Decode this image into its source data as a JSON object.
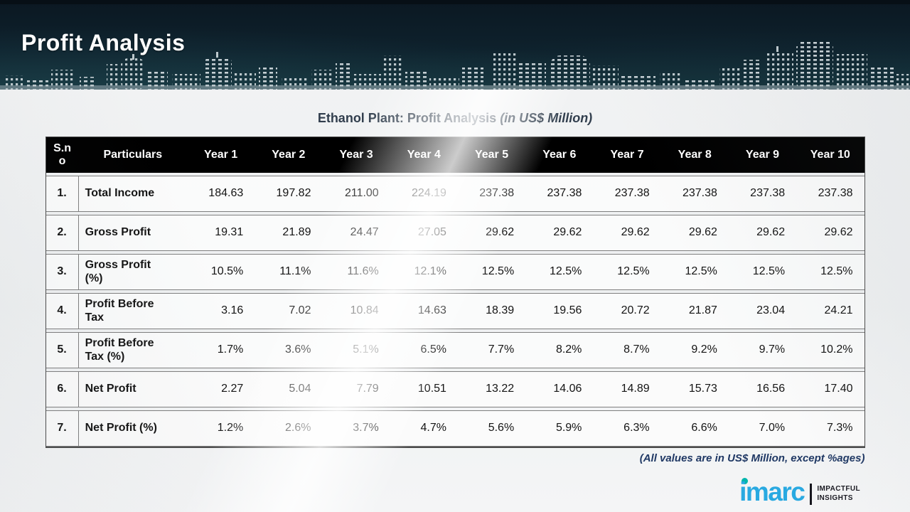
{
  "header": {
    "title": "Profit Analysis"
  },
  "table": {
    "title": "Ethanol Plant: Profit Analysis",
    "title_note": "(in US$ Million)",
    "columns": [
      "S.no",
      "Particulars",
      "Year 1",
      "Year 2",
      "Year 3",
      "Year 4",
      "Year 5",
      "Year 6",
      "Year 7",
      "Year 8",
      "Year 9",
      "Year 10"
    ],
    "rows": [
      {
        "sno": "1.",
        "particulars": "Total Income",
        "values": [
          "184.63",
          "197.82",
          "211.00",
          "224.19",
          "237.38",
          "237.38",
          "237.38",
          "237.38",
          "237.38",
          "237.38"
        ]
      },
      {
        "sno": "2.",
        "particulars": "Gross Profit",
        "values": [
          "19.31",
          "21.89",
          "24.47",
          "27.05",
          "29.62",
          "29.62",
          "29.62",
          "29.62",
          "29.62",
          "29.62"
        ]
      },
      {
        "sno": "3.",
        "particulars": "Gross Profit (%)",
        "values": [
          "10.5%",
          "11.1%",
          "11.6%",
          "12.1%",
          "12.5%",
          "12.5%",
          "12.5%",
          "12.5%",
          "12.5%",
          "12.5%"
        ]
      },
      {
        "sno": "4.",
        "particulars": "Profit Before Tax",
        "values": [
          "3.16",
          "7.02",
          "10.84",
          "14.63",
          "18.39",
          "19.56",
          "20.72",
          "21.87",
          "23.04",
          "24.21"
        ]
      },
      {
        "sno": "5.",
        "particulars": "Profit Before Tax (%)",
        "values": [
          "1.7%",
          "3.6%",
          "5.1%",
          "6.5%",
          "7.7%",
          "8.2%",
          "8.7%",
          "9.2%",
          "9.7%",
          "10.2%"
        ]
      },
      {
        "sno": "6.",
        "particulars": "Net Profit",
        "values": [
          "2.27",
          "5.04",
          "7.79",
          "10.51",
          "13.22",
          "14.06",
          "14.89",
          "15.73",
          "16.56",
          "17.40"
        ]
      },
      {
        "sno": "7.",
        "particulars": "Net Profit (%)",
        "values": [
          "1.2%",
          "2.6%",
          "3.7%",
          "4.7%",
          "5.6%",
          "5.9%",
          "6.3%",
          "6.6%",
          "7.0%",
          "7.3%"
        ]
      }
    ],
    "footnote": "(All values are in US$ Million, except %ages)"
  },
  "logo": {
    "text": "imarc",
    "tagline_line1": "IMPACTFUL",
    "tagline_line2": "INSIGHTS"
  },
  "colors": {
    "banner_bg": "#0e212c",
    "table_header_bg": "#000000",
    "row_border": "#7f7f7f",
    "title_text": "#313e4d",
    "footnote_text": "#1f3864",
    "logo_blue": "#29a9e1",
    "logo_dot_teal": "#00b5ad"
  }
}
